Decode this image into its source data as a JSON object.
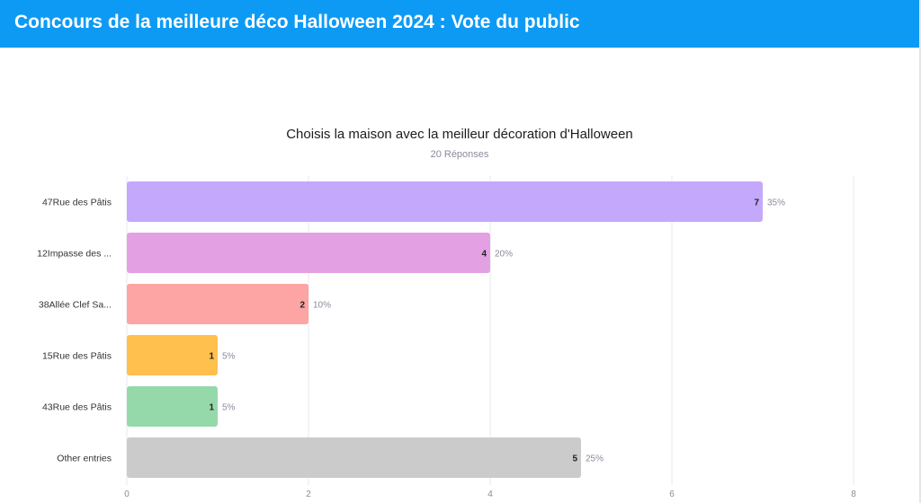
{
  "header": {
    "title": "Concours de la meilleure déco Halloween 2024 : Vote du public",
    "background": "#0d9af5"
  },
  "chart_data": {
    "type": "bar",
    "orientation": "horizontal",
    "title": "Choisis la maison avec la meilleur décoration d'Halloween",
    "subtitle": "20 Réponses",
    "categories": [
      "47Rue des Pâtis",
      "12Impasse des ...",
      "38Allée Clef Sa...",
      "15Rue des Pâtis",
      "43Rue des Pâtis",
      "Other entries"
    ],
    "values": [
      7,
      4,
      2,
      1,
      1,
      5
    ],
    "percent_labels": [
      "35%",
      "20%",
      "10%",
      "5%",
      "5%",
      "25%"
    ],
    "colors": [
      "#c4a8fc",
      "#e3a1e4",
      "#fda4a4",
      "#ffc04d",
      "#95d9ab",
      "#cbcbcb"
    ],
    "xlim": [
      0,
      8
    ],
    "xticks": [
      0,
      2,
      4,
      6,
      8
    ],
    "grid": true,
    "legend": "none"
  }
}
